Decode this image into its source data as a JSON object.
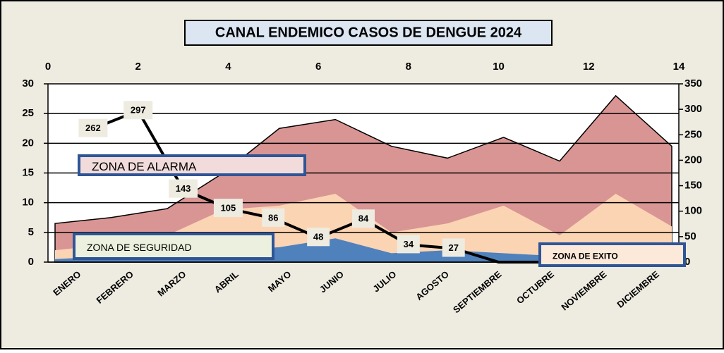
{
  "chart_data": {
    "type": "area",
    "title": "CANAL ENDEMICO CASOS DE DENGUE 2024",
    "categories": [
      "ENERO",
      "FEBRERO",
      "MARZO",
      "ABRIL",
      "MAYO",
      "JUNIO",
      "JULIO",
      "AGOSTO",
      "SEPTIEMBRE",
      "OCTUBRE",
      "NOVIEMBRE",
      "DICIEMBRE"
    ],
    "series": [
      {
        "name": "ZONA DE ALARMA",
        "color": "#d99594",
        "values": [
          6.5,
          7.5,
          9,
          15,
          22.5,
          24,
          19.5,
          17.5,
          21,
          17,
          28,
          19.5
        ]
      },
      {
        "name": "ZONA DE SEGURIDAD",
        "color": "#fbd4b4",
        "values": [
          2,
          3,
          4.5,
          8.8,
          9.5,
          11.5,
          5,
          6.5,
          9.5,
          4.5,
          11.5,
          6
        ]
      },
      {
        "name": "ZONA DE EXITO",
        "color": "#4f81bd",
        "values": [
          0.5,
          1,
          1.5,
          2,
          2.5,
          4,
          1.5,
          2,
          1.5,
          1,
          1,
          1
        ]
      }
    ],
    "ylim": [
      0,
      30
    ],
    "yticks": [
      0,
      5,
      10,
      15,
      20,
      25,
      30
    ],
    "y2lim": [
      0,
      350
    ],
    "y2ticks": [
      0,
      50,
      100,
      150,
      200,
      250,
      300,
      350
    ],
    "xlim": [
      0,
      14
    ],
    "xticks": [
      0,
      2,
      4,
      6,
      8,
      10,
      12,
      14
    ],
    "grid": true,
    "line": {
      "type": "line",
      "axis": "y2",
      "color": "#000000",
      "x": [
        1,
        2,
        3,
        4,
        5,
        6,
        7,
        8,
        9,
        10,
        11
      ],
      "values": [
        262,
        297,
        143,
        105,
        86,
        48,
        84,
        34,
        27,
        0,
        0
      ],
      "value_labels": [
        "262",
        "297",
        "143",
        "105",
        "86",
        "48",
        "84",
        "34",
        "27",
        null,
        null
      ]
    }
  }
}
